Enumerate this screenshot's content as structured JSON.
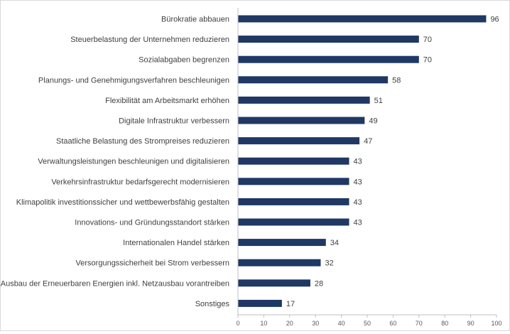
{
  "colors": {
    "bar": "#1f3864",
    "axis": "#bfbfbf",
    "text": "#404040",
    "frame": "#d9d9d9"
  },
  "chart_data": {
    "type": "bar",
    "orientation": "horizontal",
    "title": "",
    "xlabel": "",
    "ylabel": "",
    "categories": [
      "Bürokratie abbauen",
      "Steuerbelastung der Unternehmen reduzieren",
      "Sozialabgaben begrenzen",
      "Planungs- und Genehmigungsverfahren beschleunigen",
      "Flexibilität am Arbeitsmarkt erhöhen",
      "Digitale Infrastruktur verbessern",
      "Staatliche Belastung des Strompreises reduzieren",
      "Verwaltungsleistungen beschleunigen und digitalisieren",
      "Verkehrsinfrastruktur bedarfsgerecht modernisieren",
      "Klimapolitik investitionssicher und wettbewerbsfähig gestalten",
      "Innovations- und Gründungsstandort stärken",
      "Internationalen Handel stärken",
      "Versorgungssicherheit bei Strom verbessern",
      "Ausbau der Erneuerbaren Energien inkl. Netzausbau vorantreiben",
      "Sonstiges"
    ],
    "values": [
      96,
      70,
      70,
      58,
      51,
      49,
      47,
      43,
      43,
      43,
      43,
      34,
      32,
      28,
      17
    ],
    "xlim": [
      0,
      100
    ],
    "xticks": [
      0,
      10,
      20,
      30,
      40,
      50,
      60,
      70,
      80,
      90,
      100
    ],
    "grid": false,
    "data_labels": true,
    "legend": "none"
  }
}
